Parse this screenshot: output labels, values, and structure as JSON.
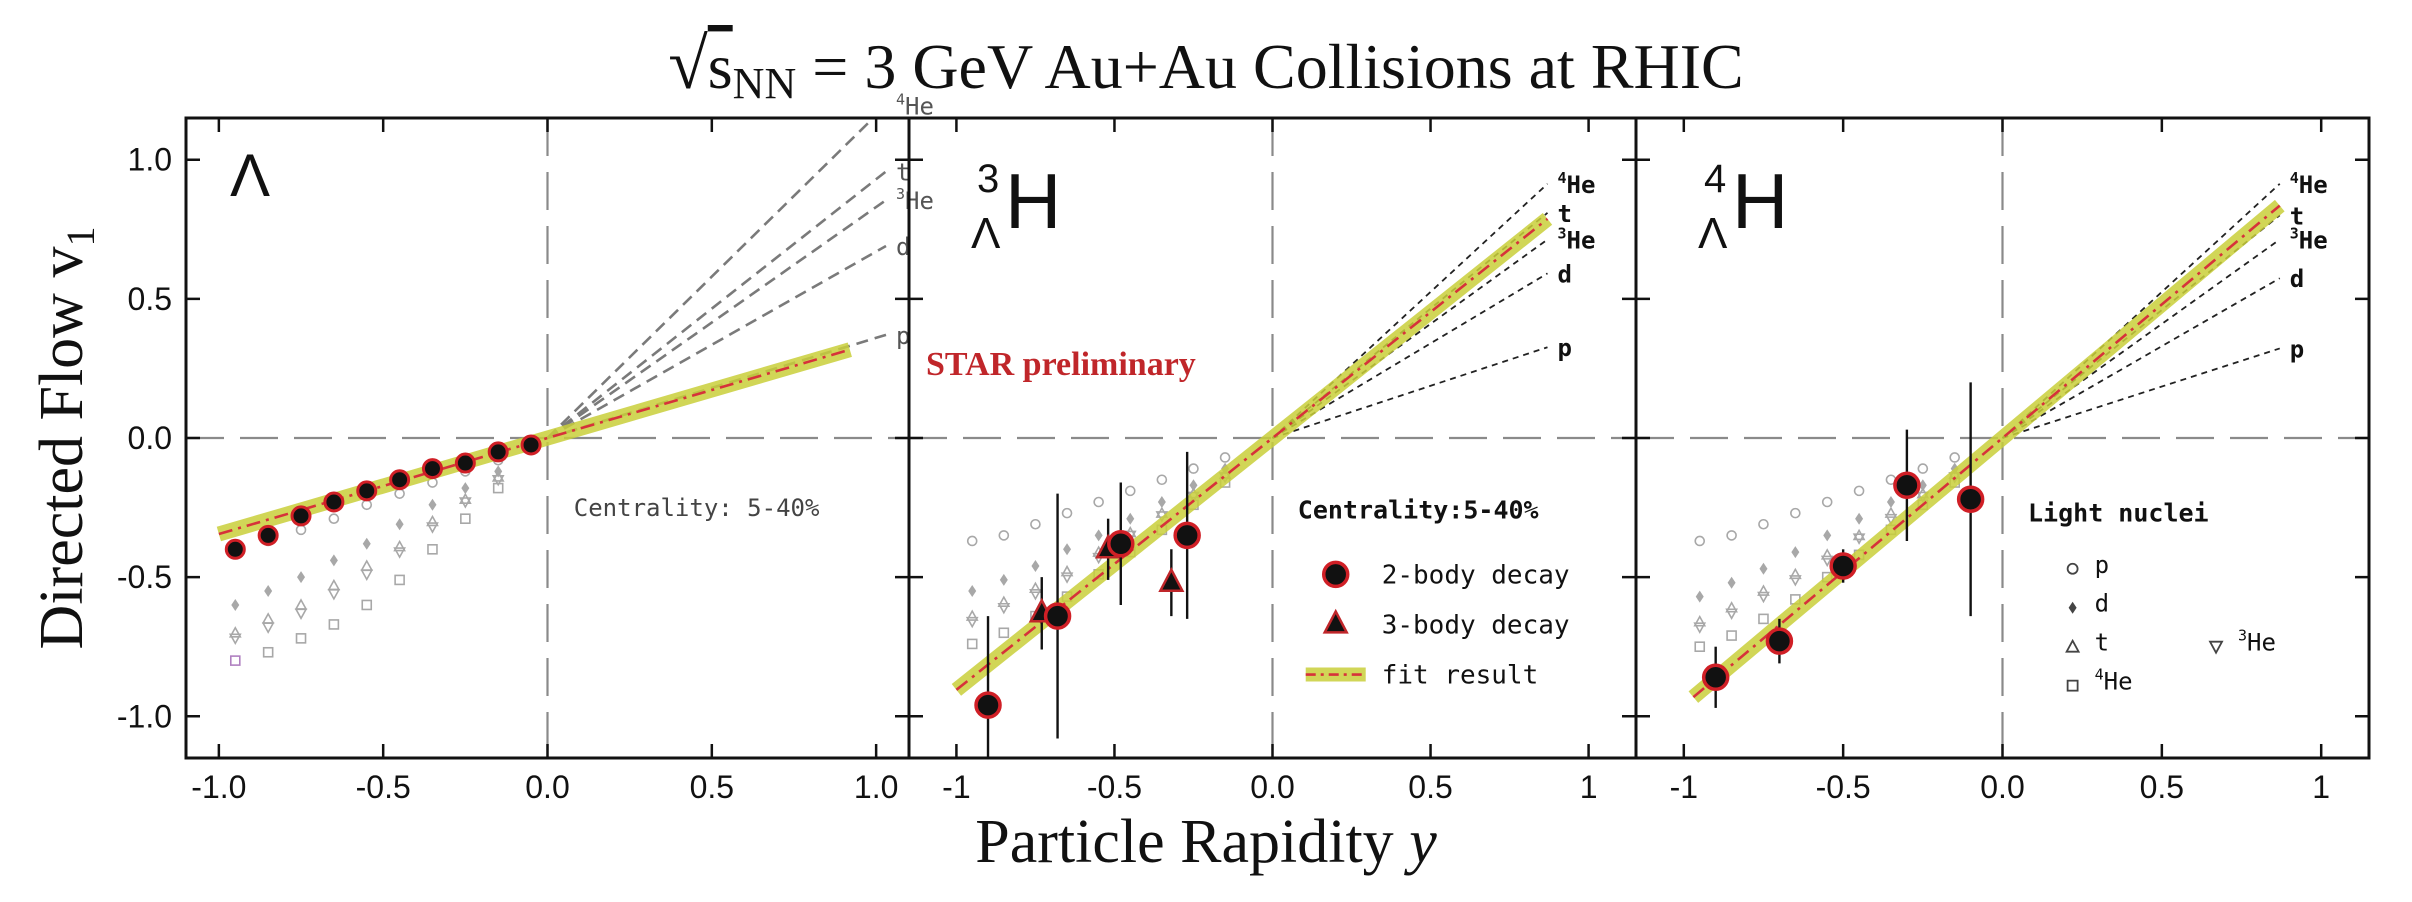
{
  "figure": {
    "title_prefix": "√",
    "title_sym": "s",
    "title_sub": "NN",
    "title_rest": " = 3 GeV Au+Au Collisions at RHIC",
    "ylabel_main": "Directed Flow v",
    "ylabel_sub": "1",
    "xlabel_main": "Particle Rapidity ",
    "xlabel_var": "y",
    "preliminary": "STAR preliminary"
  },
  "chart_data": [
    {
      "type": "scatter",
      "panel_label": "Λ",
      "label_pre": "",
      "label_main": "",
      "label_sup": "",
      "label_sub": "",
      "xlim": [
        -1.1,
        1.1
      ],
      "ylim": [
        -1.15,
        1.15
      ],
      "xticks": [
        -1.0,
        -0.5,
        0.0,
        0.5,
        1.0
      ],
      "xtick_labels": [
        "-1.0",
        "-0.5",
        "0.0",
        "0.5",
        "1.0"
      ],
      "yticks": [
        -1.0,
        -0.5,
        0.0,
        0.5,
        1.0
      ],
      "ytick_labels": [
        "-1.0",
        "-0.5",
        "0.0",
        "0.5",
        "1.0"
      ],
      "reference_lines": [
        {
          "label": "p",
          "sup": "",
          "slope": 0.36
        },
        {
          "label": "d",
          "sup": "",
          "slope": 0.67
        },
        {
          "label": "He",
          "sup": "3",
          "slope": 0.83
        },
        {
          "label": "t",
          "sup": "",
          "slope": 0.93
        },
        {
          "label": "He",
          "sup": "4",
          "slope": 1.16
        }
      ],
      "ref_xmax": 1.03,
      "ref_color": "#7a7a7a",
      "fit": {
        "slope": 0.345,
        "xmin": -1.0,
        "xmax": 0.92
      },
      "light_nuclei": {
        "p": {
          "x": [
            -0.95,
            -0.85,
            -0.75,
            -0.65,
            -0.55,
            -0.45,
            -0.35,
            -0.25,
            -0.15
          ],
          "y": [
            -0.4,
            -0.37,
            -0.33,
            -0.29,
            -0.24,
            -0.2,
            -0.16,
            -0.12,
            -0.08
          ]
        },
        "d": {
          "x": [
            -0.95,
            -0.85,
            -0.75,
            -0.65,
            -0.55,
            -0.45,
            -0.35,
            -0.25,
            -0.15
          ],
          "y": [
            -0.6,
            -0.55,
            -0.5,
            -0.44,
            -0.38,
            -0.31,
            -0.24,
            -0.18,
            -0.12
          ]
        },
        "t": {
          "x": [
            -0.95,
            -0.85,
            -0.75,
            -0.65,
            -0.55,
            -0.45,
            -0.35,
            -0.25,
            -0.15
          ],
          "y": [
            -0.7,
            -0.65,
            -0.6,
            -0.53,
            -0.46,
            -0.39,
            -0.3,
            -0.22,
            -0.14
          ]
        },
        "He3": {
          "x": [
            -0.95,
            -0.85,
            -0.75,
            -0.65,
            -0.55,
            -0.45,
            -0.35,
            -0.25,
            -0.15
          ],
          "y": [
            -0.72,
            -0.68,
            -0.63,
            -0.56,
            -0.49,
            -0.41,
            -0.32,
            -0.23,
            -0.15
          ]
        },
        "He4": {
          "x": [
            -0.95,
            -0.85,
            -0.75,
            -0.65,
            -0.55,
            -0.45,
            -0.35,
            -0.25,
            -0.15
          ],
          "y": [
            -0.8,
            -0.77,
            -0.72,
            -0.67,
            -0.6,
            -0.51,
            -0.4,
            -0.29,
            -0.18
          ]
        }
      },
      "points_2body": [
        {
          "x": -0.95,
          "y": -0.4,
          "err": 0
        },
        {
          "x": -0.85,
          "y": -0.35,
          "err": 0
        },
        {
          "x": -0.75,
          "y": -0.28,
          "err": 0
        },
        {
          "x": -0.65,
          "y": -0.23,
          "err": 0
        },
        {
          "x": -0.55,
          "y": -0.19,
          "err": 0
        },
        {
          "x": -0.45,
          "y": -0.15,
          "err": 0
        },
        {
          "x": -0.35,
          "y": -0.11,
          "err": 0
        },
        {
          "x": -0.25,
          "y": -0.09,
          "err": 0
        },
        {
          "x": -0.15,
          "y": -0.05,
          "err": 0
        },
        {
          "x": -0.05,
          "y": -0.025,
          "err": 0
        }
      ],
      "points_3body": [],
      "centrality_text": "Centrality: 5-40%",
      "legend_title": "",
      "legend": []
    },
    {
      "type": "scatter",
      "panel_label": "",
      "label_pre": "",
      "label_main": "H",
      "label_sup": "3",
      "label_sub": "Λ",
      "xlim": [
        -1.15,
        1.15
      ],
      "ylim": [
        -1.15,
        1.15
      ],
      "xticks": [
        -1,
        -0.5,
        0,
        0.5,
        1
      ],
      "xtick_labels": [
        "-1",
        "-0.5",
        "0.0",
        "0.5",
        "1"
      ],
      "yticks": [
        -1.0,
        -0.5,
        0.0,
        0.5,
        1.0
      ],
      "ytick_labels": [],
      "reference_lines": [
        {
          "label": "p",
          "sup": "",
          "slope": 0.375
        },
        {
          "label": "d",
          "sup": "",
          "slope": 0.68
        },
        {
          "label": "He",
          "sup": "3",
          "slope": 0.82
        },
        {
          "label": "t",
          "sup": "",
          "slope": 0.93
        },
        {
          "label": "He",
          "sup": "4",
          "slope": 1.05
        }
      ],
      "ref_xmax": 0.87,
      "ref_color": "#222222",
      "fit": {
        "slope": 0.905,
        "xmin": -1.0,
        "xmax": 0.87
      },
      "light_nuclei": {
        "p": {
          "x": [
            -0.95,
            -0.85,
            -0.75,
            -0.65,
            -0.55,
            -0.45,
            -0.35,
            -0.25,
            -0.15
          ],
          "y": [
            -0.37,
            -0.35,
            -0.31,
            -0.27,
            -0.23,
            -0.19,
            -0.15,
            -0.11,
            -0.07
          ]
        },
        "d": {
          "x": [
            -0.95,
            -0.85,
            -0.75,
            -0.65,
            -0.55,
            -0.45,
            -0.35,
            -0.25,
            -0.15
          ],
          "y": [
            -0.55,
            -0.51,
            -0.46,
            -0.4,
            -0.35,
            -0.29,
            -0.23,
            -0.17,
            -0.11
          ]
        },
        "t": {
          "x": [
            -0.95,
            -0.85,
            -0.75,
            -0.65,
            -0.55,
            -0.45,
            -0.35,
            -0.25,
            -0.15
          ],
          "y": [
            -0.64,
            -0.59,
            -0.54,
            -0.48,
            -0.41,
            -0.34,
            -0.27,
            -0.2,
            -0.13
          ]
        },
        "He3": {
          "x": [
            -0.95,
            -0.85,
            -0.75,
            -0.65,
            -0.55,
            -0.45,
            -0.35,
            -0.25,
            -0.15
          ],
          "y": [
            -0.66,
            -0.61,
            -0.56,
            -0.5,
            -0.43,
            -0.35,
            -0.28,
            -0.21,
            -0.14
          ]
        },
        "He4": {
          "x": [
            -0.95,
            -0.85,
            -0.75,
            -0.65,
            -0.55,
            -0.45,
            -0.35,
            -0.25,
            -0.15
          ],
          "y": [
            -0.74,
            -0.7,
            -0.64,
            -0.57,
            -0.49,
            -0.41,
            -0.33,
            -0.24,
            -0.16
          ]
        }
      },
      "points_2body": [
        {
          "x": -0.9,
          "y": -0.96,
          "err": 0.32
        },
        {
          "x": -0.68,
          "y": -0.64,
          "err": 0.44
        },
        {
          "x": -0.48,
          "y": -0.38,
          "err": 0.22
        },
        {
          "x": -0.27,
          "y": -0.35,
          "err": 0.3
        }
      ],
      "points_3body": [
        {
          "x": -0.73,
          "y": -0.63,
          "err": 0.13
        },
        {
          "x": -0.52,
          "y": -0.4,
          "err": 0.11
        },
        {
          "x": -0.32,
          "y": -0.52,
          "err": 0.12
        }
      ],
      "centrality_text": "",
      "legend_title": "Centrality:5-40%",
      "legend": [
        {
          "kind": "circle",
          "label": "2-body decay"
        },
        {
          "kind": "triangle",
          "label": "3-body decay"
        },
        {
          "kind": "fit",
          "label": "fit result"
        }
      ]
    },
    {
      "type": "scatter",
      "panel_label": "",
      "label_pre": "",
      "label_main": "H",
      "label_sup": "4",
      "label_sub": "Λ",
      "xlim": [
        -1.15,
        1.15
      ],
      "ylim": [
        -1.15,
        1.15
      ],
      "xticks": [
        -1,
        -0.5,
        0,
        0.5,
        1
      ],
      "xtick_labels": [
        "-1",
        "-0.5",
        "0.0",
        "0.5",
        "1"
      ],
      "yticks": [
        -1.0,
        -0.5,
        0.0,
        0.5,
        1.0
      ],
      "ytick_labels": [],
      "reference_lines": [
        {
          "label": "p",
          "sup": "",
          "slope": 0.37
        },
        {
          "label": "d",
          "sup": "",
          "slope": 0.66
        },
        {
          "label": "He",
          "sup": "3",
          "slope": 0.82
        },
        {
          "label": "t",
          "sup": "",
          "slope": 0.92
        },
        {
          "label": "He",
          "sup": "4",
          "slope": 1.05
        }
      ],
      "ref_xmax": 0.87,
      "ref_color": "#222222",
      "fit": {
        "slope": 0.96,
        "xmin": -0.97,
        "xmax": 0.87
      },
      "light_nuclei": {
        "p": {
          "x": [
            -0.95,
            -0.85,
            -0.75,
            -0.65,
            -0.55,
            -0.45,
            -0.35,
            -0.25,
            -0.15
          ],
          "y": [
            -0.37,
            -0.35,
            -0.31,
            -0.27,
            -0.23,
            -0.19,
            -0.15,
            -0.11,
            -0.07
          ]
        },
        "d": {
          "x": [
            -0.95,
            -0.85,
            -0.75,
            -0.65,
            -0.55,
            -0.45,
            -0.35,
            -0.25,
            -0.15
          ],
          "y": [
            -0.57,
            -0.52,
            -0.47,
            -0.41,
            -0.35,
            -0.29,
            -0.23,
            -0.17,
            -0.11
          ]
        },
        "t": {
          "x": [
            -0.95,
            -0.85,
            -0.75,
            -0.65,
            -0.55,
            -0.45,
            -0.35,
            -0.25,
            -0.15
          ],
          "y": [
            -0.66,
            -0.61,
            -0.55,
            -0.49,
            -0.42,
            -0.35,
            -0.27,
            -0.2,
            -0.13
          ]
        },
        "He3": {
          "x": [
            -0.95,
            -0.85,
            -0.75,
            -0.65,
            -0.55,
            -0.45,
            -0.35,
            -0.25,
            -0.15
          ],
          "y": [
            -0.68,
            -0.63,
            -0.57,
            -0.51,
            -0.44,
            -0.36,
            -0.29,
            -0.21,
            -0.14
          ]
        },
        "He4": {
          "x": [
            -0.95,
            -0.85,
            -0.75,
            -0.65,
            -0.55,
            -0.45,
            -0.35,
            -0.25,
            -0.15
          ],
          "y": [
            -0.75,
            -0.71,
            -0.65,
            -0.58,
            -0.5,
            -0.42,
            -0.33,
            -0.24,
            -0.16
          ]
        }
      },
      "points_2body": [
        {
          "x": -0.9,
          "y": -0.86,
          "err": 0.11
        },
        {
          "x": -0.7,
          "y": -0.73,
          "err": 0.08
        },
        {
          "x": -0.5,
          "y": -0.46,
          "err": 0.06
        },
        {
          "x": -0.3,
          "y": -0.17,
          "err": 0.2
        },
        {
          "x": -0.1,
          "y": -0.22,
          "err": 0.42
        }
      ],
      "points_3body": [],
      "centrality_text": "",
      "legend_title": "Light nuclei",
      "legend": [
        {
          "kind": "open-circle",
          "label": "p",
          "sup": ""
        },
        {
          "kind": "diamond",
          "label": "d",
          "sup": ""
        },
        {
          "kind": "open-triangle",
          "label": "t",
          "sup": ""
        },
        {
          "kind": "open-tri-down",
          "label": "He",
          "sup": "3"
        },
        {
          "kind": "open-square",
          "label": "He",
          "sup": "4"
        }
      ]
    }
  ]
}
